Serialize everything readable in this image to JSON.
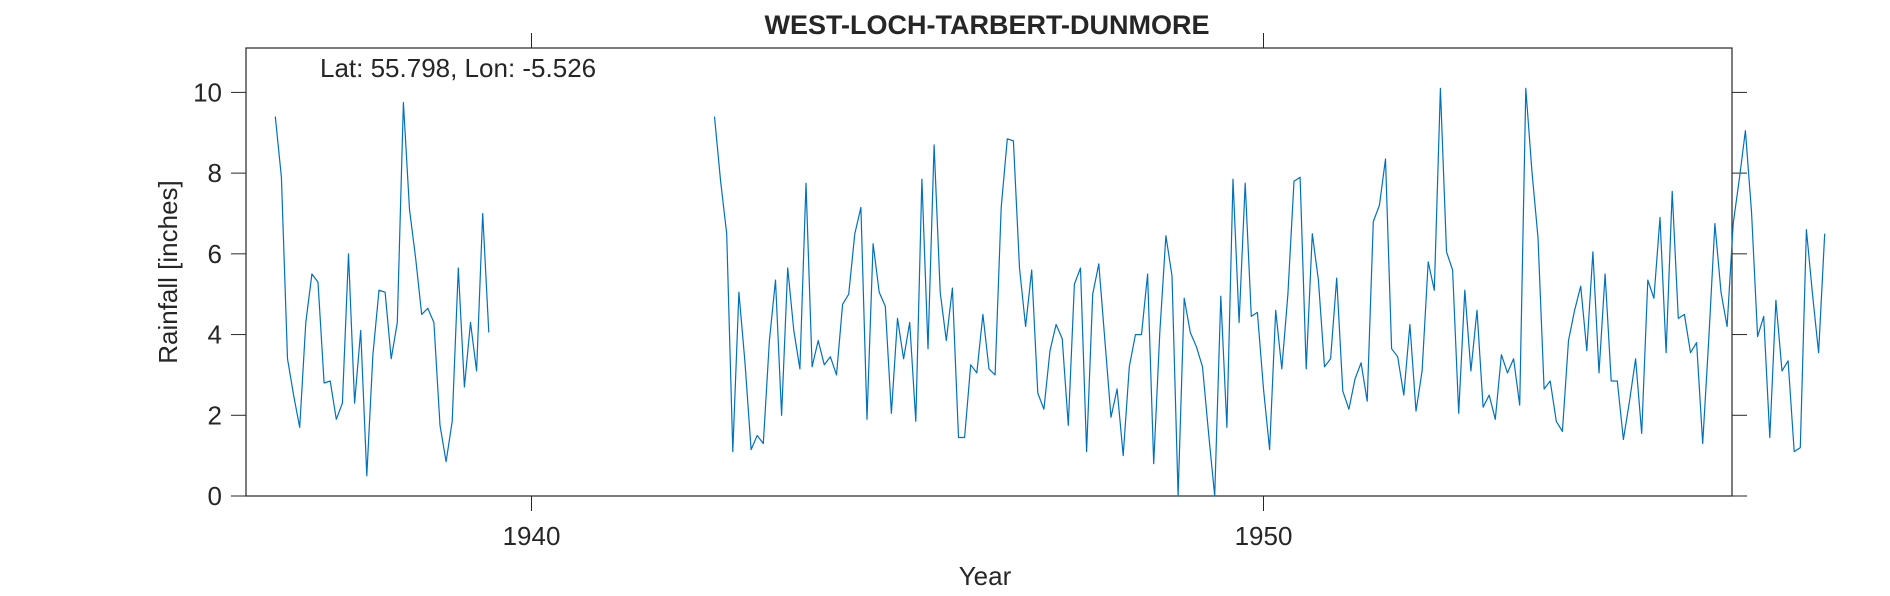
{
  "chart_data": {
    "type": "line",
    "title": "WEST-LOCH-TARBERT-DUNMORE",
    "annotation": "Lat: 55.798, Lon: -5.526",
    "xlabel": "Year",
    "ylabel": "Rainfall [inches]",
    "xlim": [
      1936.1,
      1956.4
    ],
    "ylim": [
      0,
      11.1
    ],
    "xticks": [
      1940,
      1950
    ],
    "yticks": [
      0,
      2,
      4,
      6,
      8,
      10
    ],
    "grid": false,
    "color": "#0072BD",
    "x_start": 1936.5,
    "x_step": 0.08333,
    "values": [
      9.4,
      7.9,
      3.4,
      2.5,
      1.7,
      4.3,
      5.5,
      5.3,
      2.8,
      2.85,
      1.9,
      2.3,
      6.0,
      2.3,
      4.1,
      0.5,
      3.5,
      5.1,
      5.05,
      3.4,
      4.3,
      9.75,
      7.1,
      5.9,
      4.5,
      4.65,
      4.3,
      1.75,
      0.85,
      1.85,
      5.65,
      2.7,
      4.3,
      3.1,
      7.0,
      4.05,
      null,
      null,
      null,
      null,
      null,
      null,
      null,
      null,
      null,
      null,
      null,
      null,
      null,
      null,
      null,
      null,
      null,
      null,
      null,
      null,
      null,
      null,
      null,
      null,
      null,
      null,
      null,
      null,
      null,
      null,
      null,
      null,
      null,
      null,
      null,
      null,
      9.4,
      7.8,
      6.5,
      1.1,
      5.05,
      3.3,
      1.15,
      1.5,
      1.3,
      3.85,
      5.35,
      2.0,
      5.65,
      4.1,
      3.15,
      7.75,
      3.2,
      3.85,
      3.25,
      3.45,
      3.0,
      4.75,
      5.0,
      6.5,
      7.15,
      1.9,
      6.25,
      5.05,
      4.7,
      2.05,
      4.4,
      3.4,
      4.3,
      1.85,
      7.85,
      3.65,
      8.7,
      5.05,
      3.85,
      5.15,
      1.45,
      1.45,
      3.25,
      3.05,
      4.5,
      3.15,
      3.0,
      7.15,
      8.85,
      8.8,
      5.65,
      4.2,
      5.6,
      2.55,
      2.15,
      3.6,
      4.25,
      3.9,
      1.75,
      5.25,
      5.65,
      1.1,
      5.0,
      5.75,
      3.85,
      1.95,
      2.65,
      1.0,
      3.2,
      4.0,
      4.0,
      5.5,
      0.8,
      4.05,
      6.45,
      5.45,
      0.0,
      4.9,
      4.05,
      3.7,
      3.2,
      1.55,
      0.0,
      4.95,
      1.7,
      7.85,
      4.3,
      7.75,
      4.45,
      4.55,
      2.65,
      1.15,
      4.6,
      3.15,
      5.0,
      7.8,
      7.9,
      3.15,
      6.5,
      5.35,
      3.2,
      3.4,
      5.4,
      2.6,
      2.15,
      2.9,
      3.3,
      2.35,
      6.8,
      7.2,
      8.35,
      3.65,
      3.45,
      2.5,
      4.25,
      2.1,
      3.1,
      5.8,
      5.1,
      10.1,
      6.05,
      5.6,
      2.05,
      5.1,
      3.1,
      4.6,
      2.2,
      2.5,
      1.9,
      3.5,
      3.05,
      3.4,
      2.25,
      10.1,
      8.05,
      6.4,
      2.65,
      2.85,
      1.85,
      1.6,
      3.85,
      4.6,
      5.2,
      3.6,
      6.05,
      3.05,
      5.5,
      2.85,
      2.85,
      1.4,
      2.35,
      3.4,
      1.55,
      5.35,
      4.9,
      6.9,
      3.55,
      7.55,
      4.4,
      4.5,
      3.55,
      3.8,
      1.3,
      3.9,
      6.75,
      5.05,
      4.2,
      6.75,
      7.85,
      9.05,
      7.05,
      3.95,
      4.45,
      1.45,
      4.85,
      3.1,
      3.35,
      1.1,
      1.2,
      6.6,
      5.0,
      3.55,
      6.5
    ]
  }
}
